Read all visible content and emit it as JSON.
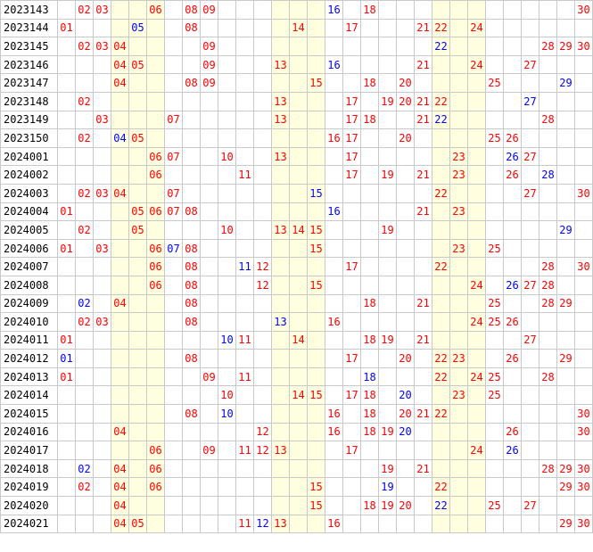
{
  "colors": {
    "red": "#ff0000",
    "blue": "#0000ff",
    "shade": "#ffffe0",
    "grid_line": "#c9c9c9"
  },
  "shaded_columns": [
    4,
    5,
    6,
    13,
    14,
    15,
    22,
    23,
    24
  ],
  "rows": [
    {
      "period": "2023143",
      "cells": [
        [
          2,
          "r"
        ],
        [
          3,
          "r"
        ],
        [
          6,
          "r"
        ],
        [
          8,
          "r"
        ],
        [
          9,
          "r"
        ],
        [
          16,
          "b"
        ],
        [
          18,
          "r"
        ],
        [
          30,
          "r"
        ]
      ]
    },
    {
      "period": "2023144",
      "cells": [
        [
          1,
          "r"
        ],
        [
          5,
          "b"
        ],
        [
          8,
          "r"
        ],
        [
          14,
          "r"
        ],
        [
          17,
          "r"
        ],
        [
          21,
          "r"
        ],
        [
          22,
          "r"
        ],
        [
          24,
          "r"
        ]
      ]
    },
    {
      "period": "2023145",
      "cells": [
        [
          2,
          "r"
        ],
        [
          3,
          "r"
        ],
        [
          4,
          "r"
        ],
        [
          9,
          "r"
        ],
        [
          22,
          "b"
        ],
        [
          28,
          "r"
        ],
        [
          29,
          "r"
        ],
        [
          30,
          "r"
        ]
      ]
    },
    {
      "period": "2023146",
      "cells": [
        [
          4,
          "r"
        ],
        [
          5,
          "r"
        ],
        [
          9,
          "r"
        ],
        [
          13,
          "r"
        ],
        [
          16,
          "b"
        ],
        [
          21,
          "r"
        ],
        [
          24,
          "r"
        ],
        [
          27,
          "r"
        ]
      ]
    },
    {
      "period": "2023147",
      "cells": [
        [
          4,
          "r"
        ],
        [
          8,
          "r"
        ],
        [
          9,
          "r"
        ],
        [
          15,
          "r"
        ],
        [
          18,
          "r"
        ],
        [
          20,
          "r"
        ],
        [
          25,
          "r"
        ],
        [
          29,
          "b"
        ]
      ]
    },
    {
      "period": "2023148",
      "cells": [
        [
          2,
          "r"
        ],
        [
          13,
          "r"
        ],
        [
          17,
          "r"
        ],
        [
          19,
          "r"
        ],
        [
          20,
          "r"
        ],
        [
          21,
          "r"
        ],
        [
          22,
          "r"
        ],
        [
          27,
          "b"
        ]
      ]
    },
    {
      "period": "2023149",
      "cells": [
        [
          3,
          "r"
        ],
        [
          7,
          "r"
        ],
        [
          13,
          "r"
        ],
        [
          17,
          "r"
        ],
        [
          18,
          "r"
        ],
        [
          21,
          "r"
        ],
        [
          22,
          "b"
        ],
        [
          28,
          "r"
        ]
      ]
    },
    {
      "period": "2023150",
      "cells": [
        [
          2,
          "r"
        ],
        [
          4,
          "b"
        ],
        [
          5,
          "r"
        ],
        [
          16,
          "r"
        ],
        [
          17,
          "r"
        ],
        [
          20,
          "r"
        ],
        [
          25,
          "r"
        ],
        [
          26,
          "r"
        ]
      ]
    },
    {
      "period": "2024001",
      "cells": [
        [
          6,
          "r"
        ],
        [
          7,
          "r"
        ],
        [
          10,
          "r"
        ],
        [
          13,
          "r"
        ],
        [
          17,
          "r"
        ],
        [
          23,
          "r"
        ],
        [
          26,
          "b"
        ],
        [
          27,
          "r"
        ]
      ]
    },
    {
      "period": "2024002",
      "cells": [
        [
          6,
          "r"
        ],
        [
          11,
          "r"
        ],
        [
          17,
          "r"
        ],
        [
          19,
          "r"
        ],
        [
          21,
          "r"
        ],
        [
          23,
          "r"
        ],
        [
          26,
          "r"
        ],
        [
          28,
          "b"
        ]
      ]
    },
    {
      "period": "2024003",
      "cells": [
        [
          2,
          "r"
        ],
        [
          3,
          "r"
        ],
        [
          4,
          "r"
        ],
        [
          7,
          "r"
        ],
        [
          15,
          "b"
        ],
        [
          22,
          "r"
        ],
        [
          27,
          "r"
        ],
        [
          30,
          "r"
        ]
      ]
    },
    {
      "period": "2024004",
      "cells": [
        [
          1,
          "r"
        ],
        [
          5,
          "r"
        ],
        [
          6,
          "r"
        ],
        [
          7,
          "r"
        ],
        [
          8,
          "r"
        ],
        [
          16,
          "b"
        ],
        [
          21,
          "r"
        ],
        [
          23,
          "r"
        ]
      ]
    },
    {
      "period": "2024005",
      "cells": [
        [
          2,
          "r"
        ],
        [
          5,
          "r"
        ],
        [
          10,
          "r"
        ],
        [
          13,
          "r"
        ],
        [
          14,
          "r"
        ],
        [
          15,
          "r"
        ],
        [
          19,
          "r"
        ],
        [
          29,
          "b"
        ]
      ]
    },
    {
      "period": "2024006",
      "cells": [
        [
          1,
          "r"
        ],
        [
          3,
          "r"
        ],
        [
          6,
          "r"
        ],
        [
          7,
          "b"
        ],
        [
          8,
          "r"
        ],
        [
          15,
          "r"
        ],
        [
          23,
          "r"
        ],
        [
          25,
          "r"
        ]
      ]
    },
    {
      "period": "2024007",
      "cells": [
        [
          6,
          "r"
        ],
        [
          8,
          "r"
        ],
        [
          11,
          "b"
        ],
        [
          12,
          "r"
        ],
        [
          17,
          "r"
        ],
        [
          22,
          "r"
        ],
        [
          28,
          "r"
        ],
        [
          30,
          "r"
        ]
      ]
    },
    {
      "period": "2024008",
      "cells": [
        [
          6,
          "r"
        ],
        [
          8,
          "r"
        ],
        [
          12,
          "r"
        ],
        [
          15,
          "r"
        ],
        [
          24,
          "r"
        ],
        [
          26,
          "b"
        ],
        [
          27,
          "r"
        ],
        [
          28,
          "r"
        ]
      ]
    },
    {
      "period": "2024009",
      "cells": [
        [
          2,
          "b"
        ],
        [
          4,
          "r"
        ],
        [
          8,
          "r"
        ],
        [
          18,
          "r"
        ],
        [
          21,
          "r"
        ],
        [
          25,
          "r"
        ],
        [
          28,
          "r"
        ],
        [
          29,
          "r"
        ]
      ]
    },
    {
      "period": "2024010",
      "cells": [
        [
          2,
          "r"
        ],
        [
          3,
          "r"
        ],
        [
          8,
          "r"
        ],
        [
          13,
          "b"
        ],
        [
          16,
          "r"
        ],
        [
          24,
          "r"
        ],
        [
          25,
          "r"
        ],
        [
          26,
          "r"
        ]
      ]
    },
    {
      "period": "2024011",
      "cells": [
        [
          1,
          "r"
        ],
        [
          10,
          "b"
        ],
        [
          11,
          "r"
        ],
        [
          14,
          "r"
        ],
        [
          18,
          "r"
        ],
        [
          19,
          "r"
        ],
        [
          21,
          "r"
        ],
        [
          27,
          "r"
        ]
      ]
    },
    {
      "period": "2024012",
      "cells": [
        [
          1,
          "b"
        ],
        [
          8,
          "r"
        ],
        [
          17,
          "r"
        ],
        [
          20,
          "r"
        ],
        [
          22,
          "r"
        ],
        [
          23,
          "r"
        ],
        [
          26,
          "r"
        ],
        [
          29,
          "r"
        ]
      ]
    },
    {
      "period": "2024013",
      "cells": [
        [
          1,
          "r"
        ],
        [
          9,
          "r"
        ],
        [
          11,
          "r"
        ],
        [
          18,
          "b"
        ],
        [
          22,
          "r"
        ],
        [
          24,
          "r"
        ],
        [
          25,
          "r"
        ],
        [
          28,
          "r"
        ]
      ]
    },
    {
      "period": "2024014",
      "cells": [
        [
          10,
          "r"
        ],
        [
          14,
          "r"
        ],
        [
          15,
          "r"
        ],
        [
          17,
          "r"
        ],
        [
          18,
          "r"
        ],
        [
          20,
          "b"
        ],
        [
          23,
          "r"
        ],
        [
          25,
          "r"
        ]
      ]
    },
    {
      "period": "2024015",
      "cells": [
        [
          8,
          "r"
        ],
        [
          10,
          "b"
        ],
        [
          16,
          "r"
        ],
        [
          18,
          "r"
        ],
        [
          20,
          "r"
        ],
        [
          21,
          "r"
        ],
        [
          22,
          "r"
        ],
        [
          30,
          "r"
        ]
      ]
    },
    {
      "period": "2024016",
      "cells": [
        [
          4,
          "r"
        ],
        [
          12,
          "r"
        ],
        [
          16,
          "r"
        ],
        [
          18,
          "r"
        ],
        [
          19,
          "r"
        ],
        [
          20,
          "b"
        ],
        [
          26,
          "r"
        ],
        [
          30,
          "r"
        ]
      ]
    },
    {
      "period": "2024017",
      "cells": [
        [
          6,
          "r"
        ],
        [
          9,
          "r"
        ],
        [
          11,
          "r"
        ],
        [
          12,
          "r"
        ],
        [
          13,
          "r"
        ],
        [
          17,
          "r"
        ],
        [
          24,
          "r"
        ],
        [
          26,
          "b"
        ]
      ]
    },
    {
      "period": "2024018",
      "cells": [
        [
          2,
          "b"
        ],
        [
          4,
          "r"
        ],
        [
          6,
          "r"
        ],
        [
          19,
          "r"
        ],
        [
          21,
          "r"
        ],
        [
          28,
          "r"
        ],
        [
          29,
          "r"
        ],
        [
          30,
          "r"
        ]
      ]
    },
    {
      "period": "2024019",
      "cells": [
        [
          2,
          "r"
        ],
        [
          4,
          "r"
        ],
        [
          6,
          "r"
        ],
        [
          15,
          "r"
        ],
        [
          19,
          "b"
        ],
        [
          22,
          "r"
        ],
        [
          29,
          "r"
        ],
        [
          30,
          "r"
        ]
      ]
    },
    {
      "period": "2024020",
      "cells": [
        [
          4,
          "r"
        ],
        [
          15,
          "r"
        ],
        [
          18,
          "r"
        ],
        [
          19,
          "r"
        ],
        [
          20,
          "r"
        ],
        [
          22,
          "b"
        ],
        [
          25,
          "r"
        ],
        [
          27,
          "r"
        ]
      ]
    },
    {
      "period": "2024021",
      "cells": [
        [
          4,
          "r"
        ],
        [
          5,
          "r"
        ],
        [
          11,
          "r"
        ],
        [
          12,
          "b"
        ],
        [
          13,
          "r"
        ],
        [
          16,
          "r"
        ],
        [
          29,
          "r"
        ],
        [
          30,
          "r"
        ]
      ]
    }
  ]
}
